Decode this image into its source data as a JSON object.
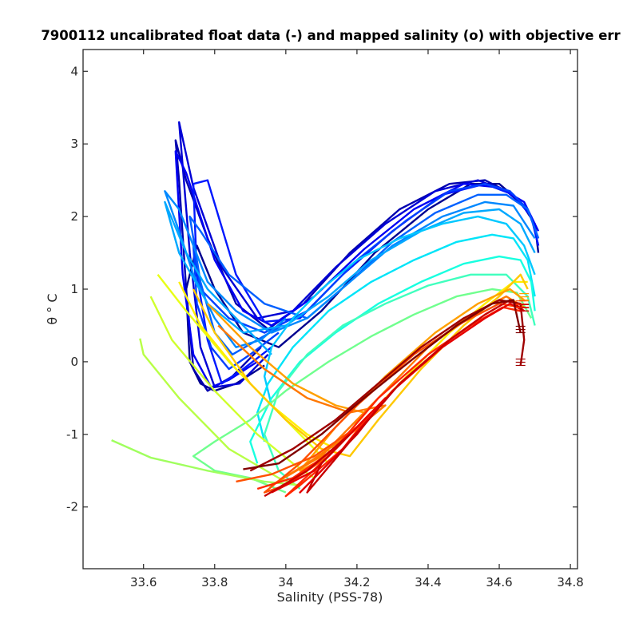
{
  "chart_data": {
    "type": "line",
    "title": "7900112 uncalibrated float data (-) and mapped salinity (o) with objective err",
    "xlabel": "Salinity (PSS-78)",
    "ylabel": "θ ° C",
    "xlim": [
      33.43,
      34.82
    ],
    "ylim": [
      -2.85,
      4.3
    ],
    "xticks": [
      33.6,
      33.8,
      34.0,
      34.2,
      34.4,
      34.6,
      34.8
    ],
    "xtick_labels": [
      "33.6",
      "33.8",
      "34",
      "34.2",
      "34.4",
      "34.6",
      "34.8"
    ],
    "yticks": [
      -2,
      -1,
      0,
      1,
      2,
      3,
      4
    ],
    "ytick_labels": [
      "-2",
      "-1",
      "0",
      "1",
      "2",
      "3",
      "4"
    ],
    "grid": false,
    "colormap": "jet",
    "series": [
      {
        "color": "#00008f",
        "x": [
          33.94,
          33.86,
          33.8,
          33.76,
          33.73,
          33.72,
          33.75,
          33.8,
          33.88,
          33.98,
          34.1,
          34.25,
          34.4,
          34.52,
          34.6,
          34.66,
          34.7,
          34.71
        ],
        "y": [
          -0.05,
          -0.3,
          -0.4,
          -0.3,
          0.0,
          1.0,
          1.6,
          1.0,
          0.4,
          0.2,
          0.7,
          1.5,
          2.1,
          2.45,
          2.45,
          2.2,
          1.9,
          1.5
        ]
      },
      {
        "color": "#0000b0",
        "x": [
          33.93,
          33.85,
          33.78,
          33.74,
          33.72,
          33.7,
          33.69,
          33.72,
          33.78,
          33.86,
          33.95,
          34.05,
          34.18,
          34.32,
          34.46,
          34.56,
          34.64,
          34.69,
          34.71
        ],
        "y": [
          0.2,
          -0.2,
          -0.4,
          -0.1,
          1.0,
          2.5,
          3.05,
          2.5,
          1.7,
          0.8,
          0.45,
          0.8,
          1.5,
          2.1,
          2.45,
          2.5,
          2.3,
          2.0,
          1.6
        ]
      },
      {
        "color": "#0000d5",
        "x": [
          33.95,
          33.87,
          33.8,
          33.76,
          33.73,
          33.71,
          33.7,
          33.74,
          33.82,
          33.92,
          34.02,
          34.14,
          34.28,
          34.42,
          34.54,
          34.62,
          34.68,
          34.71
        ],
        "y": [
          0.1,
          -0.3,
          -0.35,
          0.2,
          1.5,
          2.7,
          3.3,
          2.4,
          1.3,
          0.6,
          0.7,
          1.3,
          1.9,
          2.35,
          2.5,
          2.35,
          2.1,
          1.7
        ]
      },
      {
        "color": "#0000f5",
        "x": [
          33.92,
          33.84,
          33.79,
          33.74,
          33.71,
          33.69,
          33.72,
          33.8,
          33.88,
          33.96,
          34.08,
          34.22,
          34.36,
          34.5,
          34.6,
          34.67,
          34.71
        ],
        "y": [
          0.0,
          -0.25,
          -0.35,
          0.1,
          1.2,
          2.9,
          2.6,
          1.4,
          0.7,
          0.5,
          0.9,
          1.55,
          2.1,
          2.45,
          2.4,
          2.2,
          1.8
        ]
      },
      {
        "color": "#0018ff",
        "x": [
          33.96,
          33.88,
          33.82,
          33.78,
          33.75,
          33.74,
          33.78,
          33.86,
          33.94,
          34.04,
          34.16,
          34.3,
          34.44,
          34.56,
          34.64,
          34.69,
          34.71
        ],
        "y": [
          0.2,
          -0.1,
          -0.3,
          0.3,
          1.2,
          2.45,
          2.5,
          1.2,
          0.55,
          0.6,
          1.2,
          1.8,
          2.3,
          2.45,
          2.3,
          2.0,
          1.6
        ]
      },
      {
        "color": "#0040ff",
        "x": [
          33.98,
          33.9,
          33.84,
          33.79,
          33.75,
          33.74,
          33.76,
          33.84,
          33.94,
          34.06,
          34.2,
          34.34,
          34.46,
          34.56,
          34.63,
          34.68,
          34.71
        ],
        "y": [
          0.4,
          0.1,
          -0.1,
          0.2,
          0.8,
          1.6,
          1.0,
          0.6,
          0.4,
          0.7,
          1.4,
          1.95,
          2.35,
          2.45,
          2.35,
          2.1,
          1.7
        ]
      },
      {
        "color": "#0060ff",
        "x": [
          33.99,
          33.92,
          33.85,
          33.8,
          33.76,
          33.73,
          33.76,
          33.84,
          33.94,
          34.06,
          34.18,
          34.3,
          34.42,
          34.54,
          34.62,
          34.68,
          34.71
        ],
        "y": [
          0.5,
          0.3,
          0.1,
          0.4,
          1.1,
          2.0,
          1.8,
          1.2,
          0.8,
          0.6,
          1.1,
          1.65,
          2.05,
          2.3,
          2.3,
          2.1,
          1.7
        ]
      },
      {
        "color": "#0088ff",
        "x": [
          34.0,
          33.93,
          33.86,
          33.8,
          33.74,
          33.7,
          33.66,
          33.7,
          33.78,
          33.86,
          33.96,
          34.06,
          34.18,
          34.3,
          34.44,
          34.56,
          34.64,
          34.7
        ],
        "y": [
          0.6,
          0.3,
          0.2,
          0.6,
          1.2,
          1.8,
          2.35,
          2.1,
          1.1,
          0.7,
          0.4,
          0.6,
          1.1,
          1.6,
          2.0,
          2.2,
          2.15,
          1.7
        ]
      },
      {
        "color": "#00a8ff",
        "x": [
          33.96,
          33.9,
          33.84,
          33.78,
          33.72,
          33.66,
          33.7,
          33.78,
          33.88,
          34.0,
          34.12,
          34.24,
          34.38,
          34.5,
          34.6,
          34.66,
          34.7
        ],
        "y": [
          0.1,
          0.4,
          0.7,
          1.0,
          1.5,
          2.2,
          1.5,
          0.8,
          0.4,
          0.5,
          0.9,
          1.4,
          1.8,
          2.05,
          2.1,
          1.9,
          1.5
        ]
      },
      {
        "color": "#00c8ff",
        "x": [
          33.96,
          33.94,
          33.96,
          34.02,
          34.1,
          34.2,
          34.32,
          34.44,
          34.54,
          34.62,
          34.67,
          34.7
        ],
        "y": [
          -0.6,
          -0.2,
          0.2,
          0.6,
          1.0,
          1.4,
          1.7,
          1.9,
          2.0,
          1.9,
          1.6,
          1.2
        ]
      },
      {
        "color": "#00e4f8",
        "x": [
          33.94,
          33.92,
          33.95,
          34.02,
          34.12,
          34.24,
          34.36,
          34.48,
          34.58,
          34.64,
          34.68,
          34.7
        ],
        "y": [
          -1.1,
          -0.7,
          -0.3,
          0.2,
          0.7,
          1.1,
          1.4,
          1.65,
          1.75,
          1.7,
          1.4,
          0.9
        ]
      },
      {
        "color": "#18ffe0",
        "x": [
          33.92,
          33.9,
          33.96,
          34.04,
          34.14,
          34.26,
          34.38,
          34.5,
          34.6,
          34.66,
          34.69,
          34.7
        ],
        "y": [
          -1.4,
          -1.1,
          -0.5,
          0.0,
          0.4,
          0.8,
          1.1,
          1.35,
          1.45,
          1.4,
          1.1,
          0.7
        ]
      },
      {
        "color": "#40ffbe",
        "x": [
          34.04,
          33.98,
          33.94,
          33.98,
          34.06,
          34.16,
          34.28,
          34.4,
          34.52,
          34.62,
          34.68,
          34.7
        ],
        "y": [
          -1.75,
          -1.5,
          -1.0,
          -0.4,
          0.1,
          0.5,
          0.8,
          1.05,
          1.2,
          1.2,
          0.9,
          0.5
        ]
      },
      {
        "color": "#70ff8e",
        "x": [
          34.0,
          33.9,
          33.8,
          33.74,
          33.8,
          33.9,
          34.0,
          34.12,
          34.24,
          34.36,
          34.48,
          34.58,
          34.65,
          34.69
        ],
        "y": [
          -1.8,
          -1.6,
          -1.5,
          -1.3,
          -1.1,
          -0.8,
          -0.4,
          0.0,
          0.35,
          0.65,
          0.9,
          1.0,
          0.95,
          0.6
        ]
      },
      {
        "color": "#a0ff5e",
        "x": [
          33.51,
          33.62,
          33.78,
          33.94,
          34.04
        ],
        "y": [
          -1.08,
          -1.32,
          -1.5,
          -1.65,
          -1.7
        ]
      },
      {
        "color": "#b8ff46",
        "x": [
          33.59,
          33.6,
          33.7,
          33.84,
          33.98,
          34.04
        ],
        "y": [
          0.32,
          0.1,
          -0.5,
          -1.2,
          -1.6,
          -1.72
        ]
      },
      {
        "color": "#d0ff2e",
        "x": [
          33.62,
          33.68,
          33.8,
          33.92,
          34.02,
          34.08
        ],
        "y": [
          0.9,
          0.3,
          -0.4,
          -1.0,
          -1.4,
          -1.6
        ]
      },
      {
        "color": "#e8ff16",
        "x": [
          33.64,
          33.72,
          33.84,
          33.96,
          34.06,
          34.12
        ],
        "y": [
          1.2,
          0.7,
          0.0,
          -0.6,
          -1.1,
          -1.4
        ]
      },
      {
        "color": "#ffee00",
        "x": [
          33.7,
          33.76,
          33.86,
          33.96,
          34.06,
          34.14,
          34.22,
          34.34,
          34.46,
          34.56,
          34.64,
          34.68
        ],
        "y": [
          1.1,
          0.5,
          -0.1,
          -0.6,
          -1.0,
          -1.2,
          -0.8,
          -0.2,
          0.4,
          0.8,
          1.1,
          1.1
        ]
      },
      {
        "color": "#ffc800",
        "x": [
          33.74,
          33.8,
          33.9,
          34.0,
          34.1,
          34.18,
          34.26,
          34.38,
          34.5,
          34.6,
          34.66,
          34.68
        ],
        "y": [
          1.0,
          0.4,
          -0.3,
          -0.8,
          -1.2,
          -1.3,
          -0.8,
          -0.1,
          0.5,
          0.9,
          1.2,
          1.0
        ]
      },
      {
        "color": "#ffa000",
        "x": [
          33.78,
          33.9,
          34.02,
          34.14,
          34.22,
          34.16,
          34.08,
          34.04,
          34.14,
          34.28,
          34.42,
          34.54,
          34.63,
          34.67
        ],
        "y": [
          0.8,
          0.2,
          -0.3,
          -0.6,
          -0.7,
          -1.1,
          -1.4,
          -1.5,
          -0.9,
          -0.2,
          0.4,
          0.8,
          1.0,
          0.85
        ]
      },
      {
        "color": "#ff7800",
        "x": [
          33.81,
          33.94,
          34.06,
          34.18,
          34.28,
          34.18,
          34.06,
          33.96,
          34.1,
          34.26,
          34.4,
          34.52,
          34.62,
          34.67
        ],
        "y": [
          0.5,
          -0.1,
          -0.5,
          -0.7,
          -0.6,
          -1.0,
          -1.4,
          -1.7,
          -1.3,
          -0.5,
          0.2,
          0.65,
          0.9,
          0.75
        ]
      },
      {
        "color": "#ff5000",
        "x": [
          33.86,
          33.96,
          34.08,
          34.2,
          34.12,
          34.0,
          33.94,
          34.04,
          34.2,
          34.36,
          34.5,
          34.6,
          34.66
        ],
        "y": [
          -1.65,
          -1.55,
          -1.3,
          -0.9,
          -1.3,
          -1.7,
          -1.8,
          -1.4,
          -0.6,
          0.1,
          0.55,
          0.8,
          0.75
        ]
      },
      {
        "color": "#ff2800",
        "x": [
          33.92,
          34.02,
          34.14,
          34.24,
          34.16,
          34.04,
          34.0,
          34.12,
          34.26,
          34.4,
          34.52,
          34.61,
          34.66
        ],
        "y": [
          -1.75,
          -1.6,
          -1.2,
          -0.7,
          -1.2,
          -1.7,
          -1.85,
          -1.3,
          -0.5,
          0.1,
          0.5,
          0.75,
          0.7
        ]
      },
      {
        "color": "#e60000",
        "x": [
          33.96,
          34.08,
          34.18,
          34.28,
          34.2,
          34.08,
          34.04,
          34.16,
          34.3,
          34.44,
          34.56,
          34.63,
          34.67
        ],
        "y": [
          -1.8,
          -1.5,
          -1.0,
          -0.5,
          -1.0,
          -1.6,
          -1.8,
          -1.2,
          -0.4,
          0.2,
          0.6,
          0.8,
          0.7
        ]
      },
      {
        "color": "#c80000",
        "x": [
          33.94,
          34.06,
          34.18,
          34.1,
          34.06,
          34.18,
          34.32,
          34.46,
          34.56,
          34.63,
          34.67
        ],
        "y": [
          -1.85,
          -1.5,
          -1.0,
          -1.4,
          -1.8,
          -1.1,
          -0.3,
          0.3,
          0.65,
          0.85,
          0.7
        ]
      },
      {
        "color": "#a00000",
        "x": [
          33.9,
          34.02,
          34.14,
          34.26,
          34.38,
          34.5,
          34.6,
          34.66,
          34.67,
          34.66
        ],
        "y": [
          -1.5,
          -1.2,
          -0.8,
          -0.3,
          0.2,
          0.6,
          0.85,
          0.8,
          0.3,
          -0.05
        ]
      },
      {
        "color": "#800000",
        "x": [
          33.88,
          33.98,
          34.1,
          34.22,
          34.36,
          34.48,
          34.58,
          34.64,
          34.66
        ],
        "y": [
          -1.48,
          -1.4,
          -1.0,
          -0.5,
          0.05,
          0.5,
          0.8,
          0.85,
          0.4
        ]
      }
    ]
  }
}
